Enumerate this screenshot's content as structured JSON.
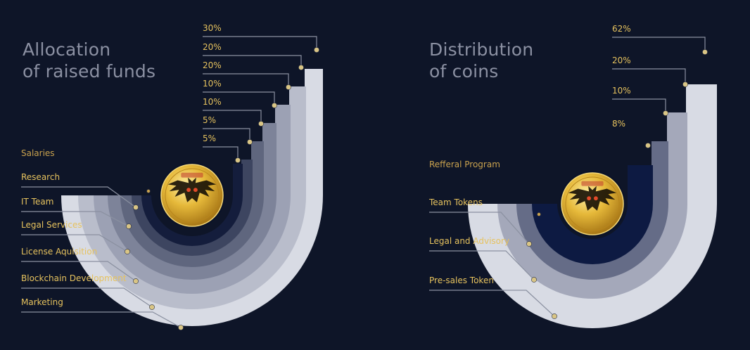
{
  "colors": {
    "background": "#0e1528",
    "accent_gold": "#e6c25e",
    "accent_gold_dim": "#c9a24e",
    "connector": "#8a90a0"
  },
  "left_panel": {
    "title_line1": "Allocation",
    "title_line2": "of raised funds"
  },
  "right_panel": {
    "title_line1": "Distribution",
    "title_line2": "of coins"
  },
  "coin_icon": "owl-coin-icon",
  "chart_data": [
    {
      "type": "pie",
      "style": "nested quarter-arc rings",
      "title": "Allocation of raised funds",
      "categories": [
        "Marketing",
        "Blockchain Development",
        "License Aquisition",
        "Legal Services",
        "IT Team",
        "Research",
        "Salaries"
      ],
      "values": [
        30,
        20,
        20,
        10,
        10,
        5,
        5
      ],
      "value_labels": [
        "30%",
        "20%",
        "20%",
        "10%",
        "10%",
        "5%",
        "5%"
      ],
      "ring_colors": [
        "#d8dbe4",
        "#b9bdcb",
        "#9ca1b4",
        "#7d8399",
        "#5f667e",
        "#3d4560",
        "#141d3c"
      ]
    },
    {
      "type": "pie",
      "style": "nested quarter-arc rings",
      "title": "Distribution of coins",
      "categories": [
        "Pre-sales Token",
        "Legal and Advisory",
        "Team Tokens",
        "Refferal Program"
      ],
      "values": [
        62,
        20,
        10,
        8
      ],
      "value_labels": [
        "62%",
        "20%",
        "10%",
        "8%"
      ],
      "ring_colors": [
        "#d8dbe4",
        "#a4a8ba",
        "#656c87",
        "#0d1a42"
      ]
    }
  ]
}
